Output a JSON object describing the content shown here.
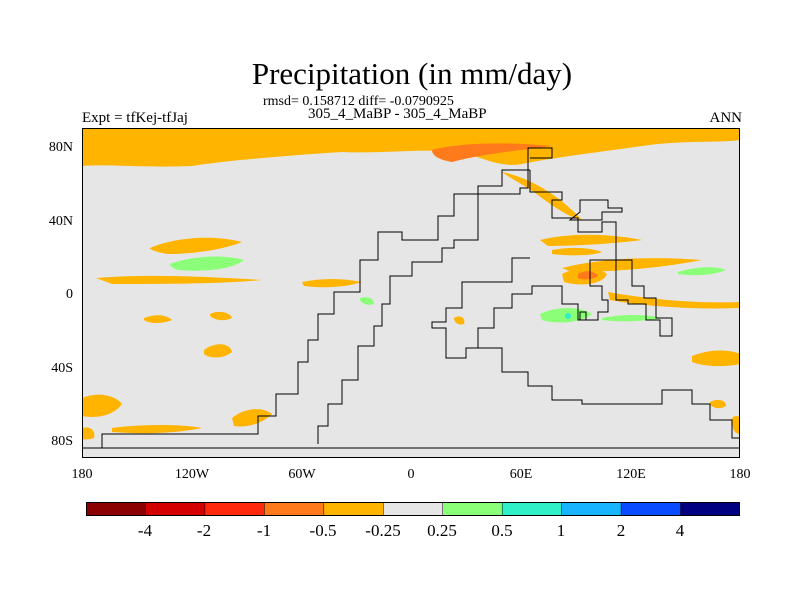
{
  "title": "Precipitation (in mm/day)",
  "stats": "rmsd= 0.158712 diff= -0.0790925",
  "subtitle": "305_4_MaBP - 305_4_MaBP",
  "left_label": "Expt = tfKej-tfJaj",
  "right_label": "ANN",
  "map": {
    "lat_ticks": [
      "80N",
      "40N",
      "0",
      "40S",
      "80S"
    ],
    "lon_ticks": [
      "180",
      "120W",
      "60W",
      "0",
      "60E",
      "120E",
      "180"
    ],
    "background_color": "#e6e6e6"
  },
  "colorbar": {
    "colors": [
      "#8b0000",
      "#d40000",
      "#ff2a0e",
      "#ff7a1a",
      "#ffb400",
      "#e6e6e6",
      "#8cff78",
      "#30f0c8",
      "#18b4ff",
      "#0a4bff",
      "#000080"
    ],
    "labels": [
      "-4",
      "-2",
      "-1",
      "-0.5",
      "-0.25",
      "0.25",
      "0.5",
      "1",
      "2",
      "4"
    ]
  }
}
